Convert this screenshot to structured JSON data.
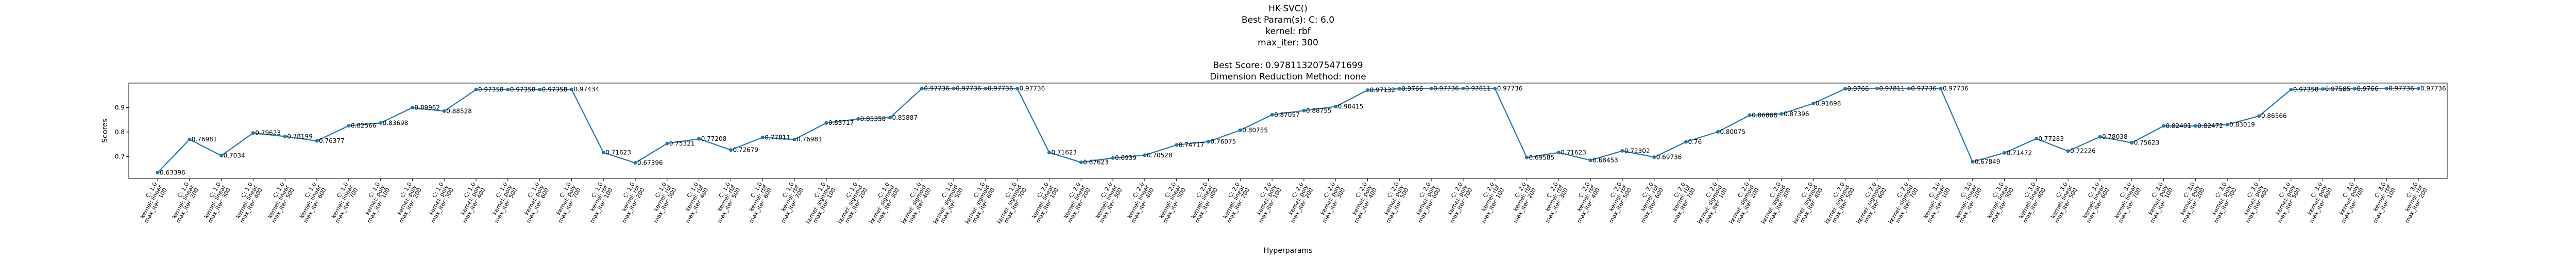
{
  "chart_data": {
    "type": "line",
    "title_lines": [
      "HK-SVC()",
      "Best Param(s): C: 6.0",
      "kernel: rbf",
      "max_iter: 300",
      "",
      "Best Score: 0.9781132075471699",
      "Dimension Reduction Method: none"
    ],
    "xlabel": "Hyperparams",
    "ylabel": "Scores",
    "yticks": [
      0.7,
      0.8,
      0.9
    ],
    "ylim": [
      0.61,
      1.0
    ],
    "colors": {
      "line": "#1f77b4"
    },
    "grid": false,
    "x_pattern": {
      "C_values": [
        "1.0",
        "2.0",
        "3.0",
        "4.0",
        "5.0",
        "6.0"
      ],
      "kernels": [
        "linear",
        "poly",
        "rbf",
        "sigmoid"
      ],
      "max_iters": [
        "100",
        "200",
        "300",
        "400",
        "500",
        "600",
        "700"
      ],
      "line1_prefix": "C: ",
      "line2_prefix": "kernel: ",
      "line3_prefix": "max_iter: "
    },
    "values": [
      0.63396,
      0.76981,
      0.7034,
      0.79623,
      0.78199,
      0.76377,
      0.82566,
      0.83698,
      0.89962,
      0.88528,
      0.97358,
      0.97358,
      0.97358,
      0.97434,
      0.71623,
      0.67396,
      0.75321,
      0.77208,
      0.72679,
      0.77811,
      0.76981,
      0.83717,
      0.85358,
      0.85887,
      0.97736,
      0.97736,
      0.97736,
      0.97736,
      0.71623,
      0.67623,
      0.6939,
      0.70528,
      0.74717,
      0.76075,
      0.80755,
      0.87057,
      0.88755,
      0.90415,
      0.97132,
      0.9766,
      0.97736,
      0.97811,
      0.97736,
      0.69585,
      0.71623,
      0.68453,
      0.72302,
      0.69736,
      0.76,
      0.80075,
      0.86868,
      0.87396,
      0.91698,
      0.9766,
      0.97811,
      0.97736,
      0.97736,
      0.67849,
      0.71472,
      0.77283,
      0.72226,
      0.78038,
      0.75623,
      0.82491,
      0.82472,
      0.83019,
      0.86566,
      0.97358,
      0.97585,
      0.9766,
      0.97736,
      0.97736
    ],
    "point_labels": [
      "0.63396",
      "0.76981",
      "0.7034",
      "0.79623",
      "0.78199",
      "0.76377",
      "0.82566",
      "0.83698",
      "0.89962",
      "0.88528",
      "0.97358",
      "0.97358",
      "0.97358",
      "0.97434",
      "0.71623",
      "0.67396",
      "0.75321",
      "0.77208",
      "0.72679",
      "0.77811",
      "0.76981",
      "0.83717",
      "0.85358",
      "0.85887",
      "0.97736",
      "0.97736",
      "0.97736",
      "0.97736",
      "0.71623",
      "0.67623",
      "0.6939",
      "0.70528",
      "0.74717",
      "0.76075",
      "0.80755",
      "0.87057",
      "0.88755",
      "0.90415",
      "0.97132",
      "0.9766",
      "0.97736",
      "0.97811",
      "0.97736",
      "0.69585",
      "0.71623",
      "0.68453",
      "0.72302",
      "0.69736",
      "0.76",
      "0.80075",
      "0.86868",
      "0.87396",
      "0.91698",
      "0.9766",
      "0.97811",
      "0.97736",
      "0.97736",
      "0.67849",
      "0.71472",
      "0.77283",
      "0.72226",
      "0.78038",
      "0.75623",
      "0.82491",
      "0.82472",
      "0.83019",
      "0.86566",
      "0.97358",
      "0.97585",
      "0.9766",
      "0.97736",
      "0.97736"
    ]
  }
}
